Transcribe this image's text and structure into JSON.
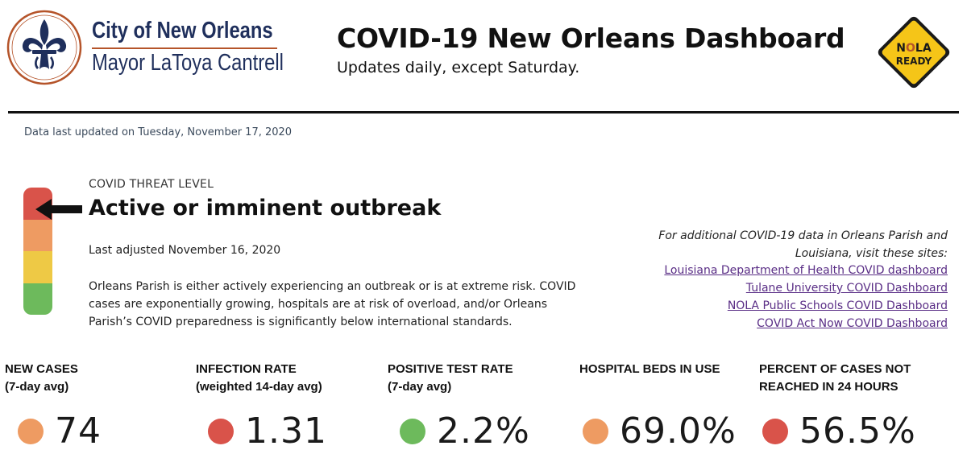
{
  "header": {
    "city_name": "City of New Orleans",
    "mayor": "Mayor LaToya Cantrell",
    "title": "COVID-19 New Orleans Dashboard",
    "subtitle": "Updates daily, except Saturday.",
    "nola_ready_logo_text": "NOLA READY"
  },
  "last_updated": "Data last updated on Tuesday, November 17, 2020",
  "threat": {
    "label": "COVID THREAT LEVEL",
    "level": "Active or imminent outbreak",
    "adjusted": "Last adjusted November 16, 2020",
    "description": "Orleans Parish is either actively experiencing an outbreak or is at extreme risk. COVID cases are exponentially growing, hospitals are at risk of overload, and/or Orleans Parish’s COVID preparedness is significantly below international standards.",
    "meter_colors": [
      "#d9534a",
      "#ee9b62",
      "#eec945",
      "#6dba5c"
    ]
  },
  "links": {
    "intro": "For additional COVID-19 data in Orleans Parish and Louisiana, visit these sites:",
    "items": [
      "Louisiana Department of Health COVID dashboard",
      "Tulane University COVID Dashboard",
      "NOLA Public Schools COVID Dashboard",
      "COVID Act Now COVID Dashboard"
    ]
  },
  "metrics": [
    {
      "line1": "NEW CASES",
      "line2": "(7-day avg)",
      "value": "74",
      "color": "#ee9b62"
    },
    {
      "line1": "INFECTION RATE",
      "line2": "(weighted 14-day avg)",
      "value": "1.31",
      "color": "#d9534a"
    },
    {
      "line1": "POSITIVE TEST RATE",
      "line2": "(7-day avg)",
      "value": "2.2%",
      "color": "#6dba5c"
    },
    {
      "line1": "HOSPITAL BEDS IN USE",
      "line2": "",
      "value": "69.0%",
      "color": "#ee9b62"
    },
    {
      "line1": "PERCENT OF CASES NOT",
      "line2": "REACHED IN 24 HOURS",
      "value": "56.5%",
      "color": "#d9534a"
    }
  ]
}
